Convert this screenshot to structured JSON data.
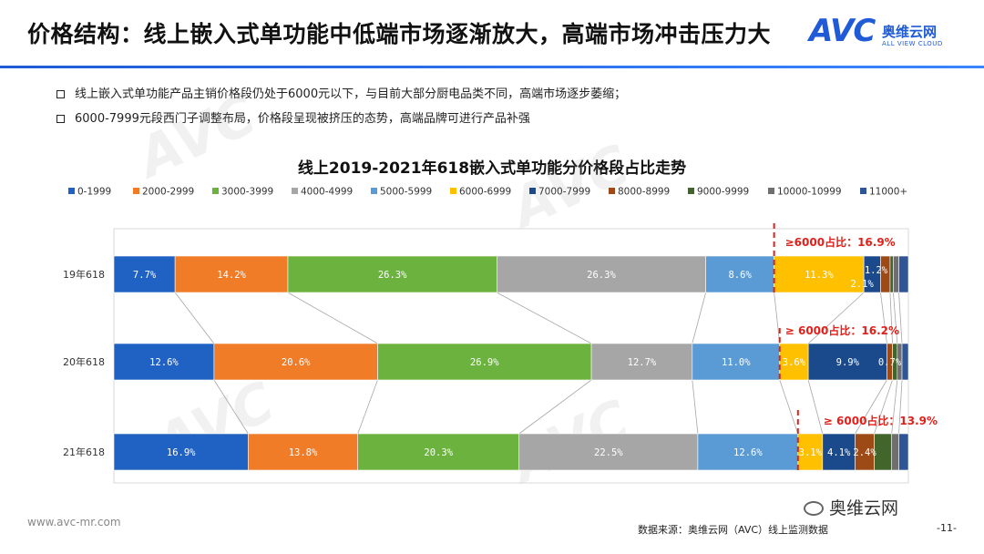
{
  "page": {
    "title": "价格结构：线上嵌入式单功能中低端市场逐渐放大，高端市场冲击压力大",
    "bullets": [
      "线上嵌入式单功能产品主销价格段仍处于6000元以下，与目前大部分厨电品类不同，高端市场逐步萎缩；",
      "6000-7999元段西门子调整布局，价格段呈现被挤压的态势，高端品牌可进行产品补强"
    ],
    "logo": {
      "mark": "AVC",
      "cn": "奥维云网",
      "en": "ALL VIEW CLOUD"
    },
    "watermark": {
      "mark": "AVC",
      "cn": "奥维云网",
      "en": "ALL VIEW CLOUD"
    },
    "footer": {
      "website": "www.avc-mr.com",
      "source": "数据来源：奥维云网（AVC）线上监测数据",
      "page_number": "-11-",
      "wechat": "奥维云网"
    }
  },
  "colors": {
    "series": [
      "#1f62c4",
      "#f07c28",
      "#6bb33e",
      "#a6a6a6",
      "#5b9bd5",
      "#ffc000",
      "#1a4a8c",
      "#9e4a17",
      "#41652a",
      "#6f6f6f",
      "#2f5597"
    ],
    "annotation": "#e0201a",
    "title_rule": "#1f5bd6"
  },
  "chart_data": {
    "type": "bar",
    "orientation": "horizontal",
    "stacked": "percent",
    "title": "线上2019-2021年618嵌入式单功能分价格段占比走势",
    "categories": [
      "19年618",
      "20年618",
      "21年618"
    ],
    "legend_position": "top",
    "series": [
      {
        "name": "0-1999",
        "values": [
          7.7,
          12.6,
          16.9
        ],
        "labels": [
          "7.7%",
          "12.6%",
          "16.9%"
        ]
      },
      {
        "name": "2000-2999",
        "values": [
          14.2,
          20.6,
          13.8
        ],
        "labels": [
          "14.2%",
          "20.6%",
          "13.8%"
        ]
      },
      {
        "name": "3000-3999",
        "values": [
          26.3,
          26.9,
          20.3
        ],
        "labels": [
          "26.3%",
          "26.9%",
          "20.3%"
        ]
      },
      {
        "name": "4000-4999",
        "values": [
          26.3,
          12.7,
          22.5
        ],
        "labels": [
          "26.3%",
          "12.7%",
          "22.5%"
        ]
      },
      {
        "name": "5000-5999",
        "values": [
          8.6,
          11.0,
          12.6
        ],
        "labels": [
          "8.6%",
          "11.0%",
          "12.6%"
        ]
      },
      {
        "name": "6000-6999",
        "values": [
          11.3,
          3.6,
          3.1
        ],
        "labels": [
          "11.3%",
          "3.6%",
          "3.1%"
        ]
      },
      {
        "name": "7000-7999",
        "values": [
          2.1,
          9.9,
          4.1
        ],
        "labels": [
          "2.1%",
          "9.9%",
          "4.1%"
        ]
      },
      {
        "name": "8000-8999",
        "values": [
          1.2,
          0.7,
          2.4
        ],
        "labels": [
          "1.2%",
          "0.7%",
          "2.4%"
        ]
      },
      {
        "name": "9000-9999",
        "values": [
          0.4,
          0.6,
          2.2
        ],
        "labels": [
          "",
          "",
          ""
        ]
      },
      {
        "name": "10000-10999",
        "values": [
          0.7,
          0.6,
          0.9
        ],
        "labels": [
          "",
          "",
          ""
        ]
      },
      {
        "name": "11000+",
        "values": [
          1.2,
          0.8,
          1.2
        ],
        "labels": [
          "",
          "",
          ""
        ]
      }
    ],
    "annotations": [
      "≥6000占比：16.9%",
      "≥ 6000占比：16.2%",
      "≥ 6000占比：13.9%"
    ],
    "grid": false
  }
}
